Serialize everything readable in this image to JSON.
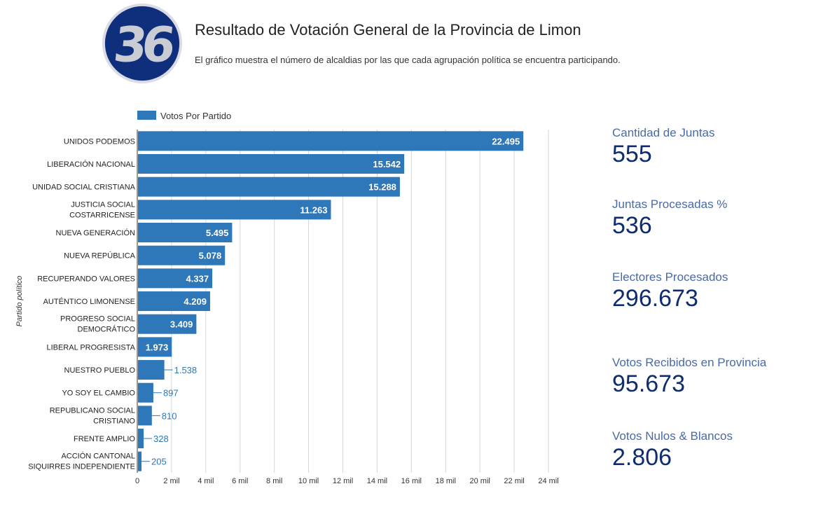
{
  "header": {
    "title": "Resultado de Votación General de la Provincia de Limon",
    "subtitle": "El gráfico muestra el número de alcaldias por las que cada agrupación política se encuentra participando.",
    "logo_text": "36"
  },
  "colors": {
    "bar": "#2e77b8",
    "logo_ring": "#0f2f7d",
    "stat_label": "#4a6aa5",
    "stat_value": "#0f2d6e"
  },
  "chart_data": {
    "type": "bar",
    "orientation": "horizontal",
    "legend": [
      "Votos Por Partido"
    ],
    "legend_position": "top-left",
    "ylabel": "Partido político",
    "xlabel": "",
    "xlim": [
      0,
      24000
    ],
    "xticks": [
      0,
      2000,
      4000,
      6000,
      8000,
      10000,
      12000,
      14000,
      16000,
      18000,
      20000,
      22000,
      24000
    ],
    "xtick_labels": [
      "0",
      "2 mil",
      "4 mil",
      "6 mil",
      "8 mil",
      "10 mil",
      "12 mil",
      "14 mil",
      "16 mil",
      "18 mil",
      "20 mil",
      "22 mil",
      "24 mil"
    ],
    "grid": true,
    "categories": [
      [
        "UNIDOS PODEMOS"
      ],
      [
        "LIBERACIÓN NACIONAL"
      ],
      [
        "UNIDAD SOCIAL CRISTIANA"
      ],
      [
        "JUSTICIA SOCIAL",
        "COSTARRICENSE"
      ],
      [
        "NUEVA GENERACIÓN"
      ],
      [
        "NUEVA REPÚBLICA"
      ],
      [
        "RECUPERANDO VALORES"
      ],
      [
        "AUTÉNTICO LIMONENSE"
      ],
      [
        "PROGRESO SOCIAL",
        "DEMOCRÁTICO"
      ],
      [
        "LIBERAL PROGRESISTA"
      ],
      [
        "NUESTRO PUEBLO"
      ],
      [
        "YO SOY EL CAMBIO"
      ],
      [
        "REPUBLICANO SOCIAL",
        "CRISTIANO"
      ],
      [
        "FRENTE AMPLIO"
      ],
      [
        "ACCIÓN CANTONAL",
        "SIQUIRRES INDEPENDIENTE"
      ]
    ],
    "values": [
      22495,
      15542,
      15288,
      11263,
      5495,
      5078,
      4337,
      4209,
      3409,
      1973,
      1538,
      897,
      810,
      328,
      205
    ],
    "value_labels": [
      "22.495",
      "15.542",
      "15.288",
      "11.263",
      "5.495",
      "5.078",
      "4.337",
      "4.209",
      "3.409",
      "1.973",
      "1.538",
      "897",
      "810",
      "328",
      "205"
    ]
  },
  "stats": [
    {
      "label": "Cantidad de Juntas",
      "value": "555"
    },
    {
      "label": "Juntas Procesadas %",
      "value": "536"
    },
    {
      "label": "Electores Procesados",
      "value": "296.673"
    },
    {
      "label": "Votos Recibidos en Provincia",
      "value": "95.673"
    },
    {
      "label": "Votos Nulos & Blancos",
      "value": "2.806"
    }
  ]
}
